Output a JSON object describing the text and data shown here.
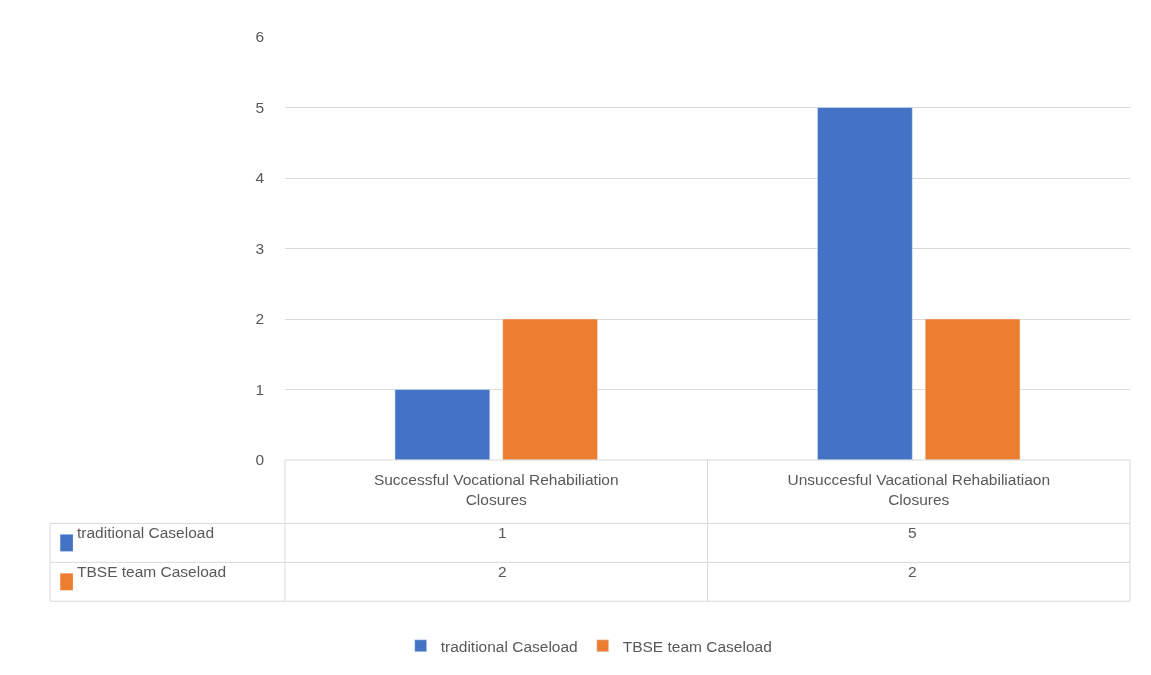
{
  "chart_data": {
    "type": "bar",
    "categories": [
      "Successful Vocational Rehabiliation Closures",
      "Unsuccesful Vacational Rehabiliatiaon Closures"
    ],
    "series": [
      {
        "name": "traditional Caseload",
        "color": "#4472c4",
        "values": [
          1,
          5
        ]
      },
      {
        "name": "TBSE team Caseload",
        "color": "#ed7d31",
        "values": [
          2,
          2
        ]
      }
    ],
    "ylim": [
      0,
      6
    ],
    "yticks": [
      0,
      1,
      2,
      3,
      4,
      5,
      6
    ],
    "grid": "y",
    "legend": "bottom",
    "data_labels": true
  }
}
